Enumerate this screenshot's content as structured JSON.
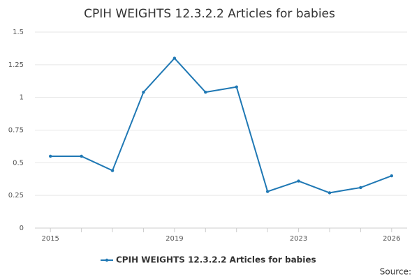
{
  "chart_data": {
    "type": "line",
    "title": "CPIH WEIGHTS 12.3.2.2 Articles for babies",
    "x": [
      2015,
      2016,
      2017,
      2018,
      2019,
      2020,
      2021,
      2022,
      2023,
      2024,
      2025,
      2026
    ],
    "series": [
      {
        "name": "CPIH WEIGHTS 12.3.2.2 Articles for babies",
        "color": "#1f78b4",
        "values": [
          0.55,
          0.55,
          0.44,
          1.04,
          1.3,
          1.04,
          1.08,
          0.28,
          0.36,
          0.27,
          0.31,
          0.4
        ]
      }
    ],
    "xlim": [
      2014.5,
      2026.5
    ],
    "xticks": [
      2015,
      2019,
      2023,
      2026
    ],
    "ylim": [
      0,
      1.5
    ],
    "yticks": [
      0,
      0.25,
      0.5,
      0.75,
      1,
      1.25,
      1.5
    ],
    "grid": true,
    "source": "Source:"
  }
}
